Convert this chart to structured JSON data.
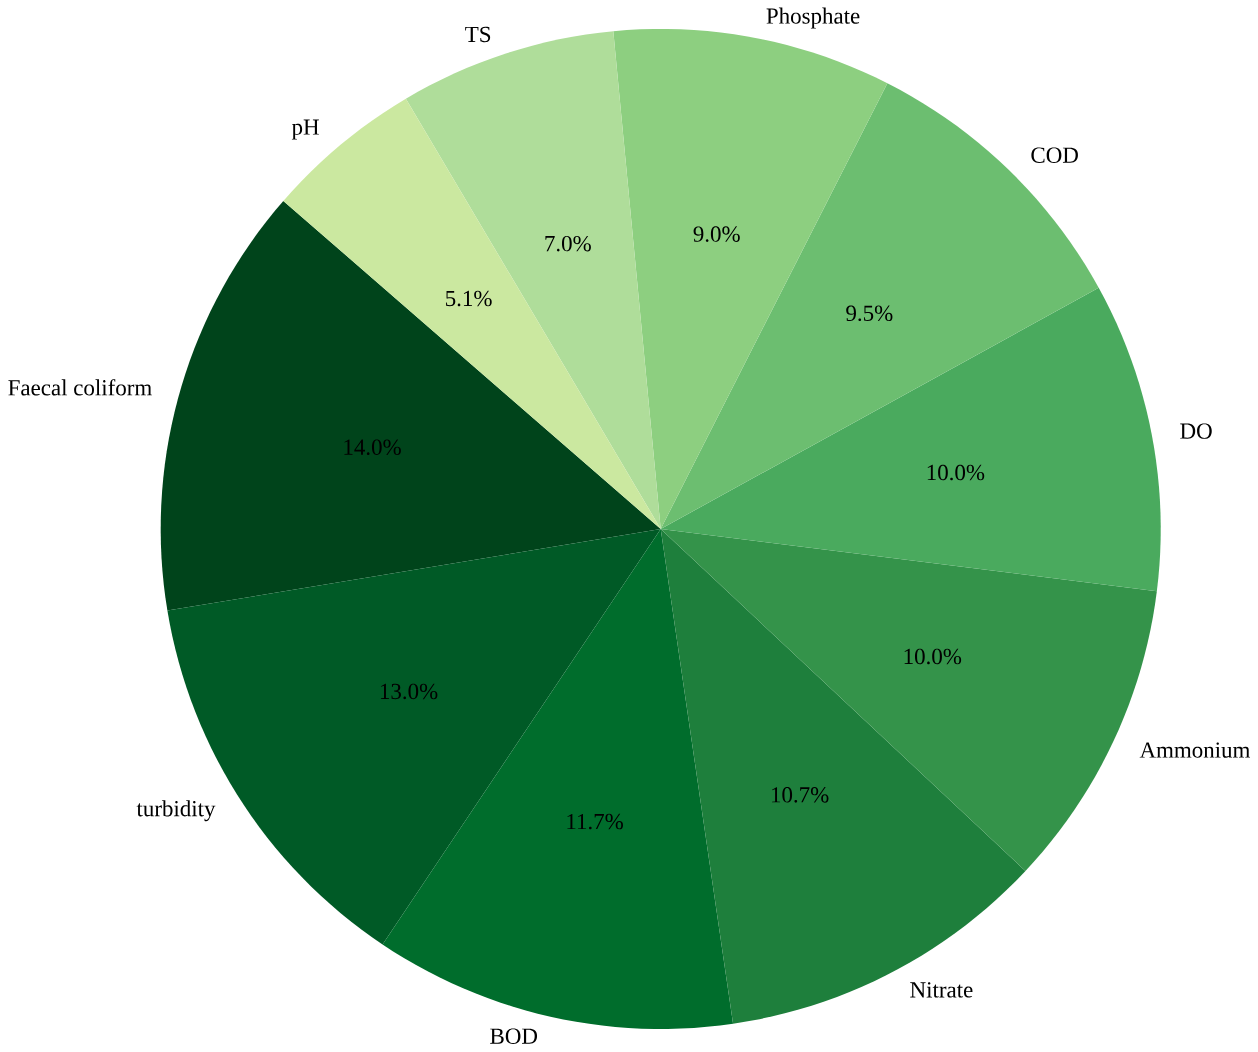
{
  "chart_data": {
    "type": "pie",
    "categories": [
      "Faecal coliform",
      "turbidity",
      "BOD",
      "Nitrate",
      "Ammonium",
      "DO",
      "COD",
      "Phosphate",
      "TS",
      "pH"
    ],
    "values": [
      14.0,
      13.0,
      11.7,
      10.7,
      10.0,
      10.0,
      9.5,
      9.0,
      7.0,
      5.1
    ],
    "value_labels": [
      "14.0%",
      "13.0%",
      "11.7%",
      "10.7%",
      "10.0%",
      "10.0%",
      "9.5%",
      "9.0%",
      "7.0%",
      "5.1%"
    ],
    "colors": [
      "#00441b",
      "#005a26",
      "#006d2c",
      "#1e7f3c",
      "#34934a",
      "#4aaa5e",
      "#6cbe70",
      "#8dcf80",
      "#afdd9a",
      "#cbe8a0"
    ]
  }
}
